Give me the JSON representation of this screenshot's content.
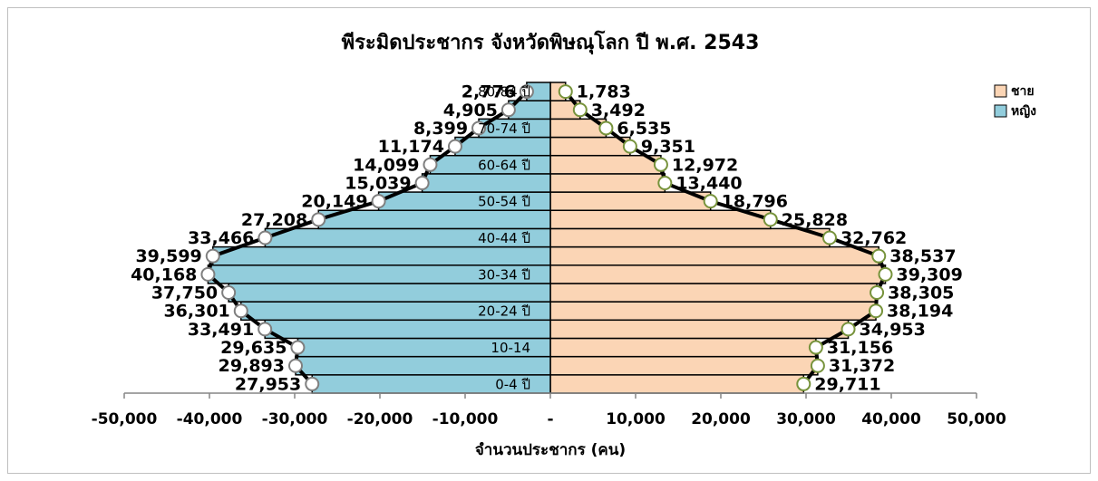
{
  "chart_data": {
    "type": "bar",
    "orientation": "horizontal",
    "title": "พีระมิดประชากร จังหวัดพิษณุโลก ปี พ.ศ. 2543",
    "x_label": "จำนวนประชากร (คน)",
    "categories": [
      "0-4 ปี",
      null,
      "10-14",
      null,
      "20-24 ปี",
      null,
      "30-34 ปี",
      null,
      "40-44 ปี",
      null,
      "50-54 ปี",
      null,
      "60-64 ปี",
      null,
      "70-74 ปี",
      null,
      "80-84 ปี"
    ],
    "series": [
      {
        "name": "ชาย",
        "color": "#fbd5b5",
        "marker_stroke": "#77933c",
        "values": [
          29711,
          31372,
          31156,
          34953,
          38194,
          38305,
          39309,
          38537,
          32762,
          25828,
          18796,
          13440,
          12972,
          9351,
          6535,
          3492,
          1783
        ],
        "value_labels": [
          "29,711",
          "31,372",
          "31,156",
          "34,953",
          "38,194",
          "38,305",
          "39,309",
          "38,537",
          "32,762",
          "25,828",
          "18,796",
          "13,440",
          "12,972",
          "9,351",
          "6,535",
          "3,492",
          "1,783"
        ]
      },
      {
        "name": "หญิง",
        "color": "#92cddc",
        "marker_stroke": "#7f7f7f",
        "values": [
          -27953,
          -29893,
          -29635,
          -33491,
          -36301,
          -37750,
          -40168,
          -39599,
          -33466,
          -27208,
          -20149,
          -15039,
          -14099,
          -11174,
          -8399,
          -4905,
          -2776
        ],
        "value_labels": [
          "27,953",
          "29,893",
          "29,635",
          "33,491",
          "36,301",
          "37,750",
          "40,168",
          "39,599",
          "33,466",
          "27,208",
          "20,149",
          "15,039",
          "14,099",
          "11,174",
          "8,399",
          "4,905",
          "2,776"
        ]
      }
    ],
    "xlim": [
      -50000,
      50000
    ],
    "xticks": [
      {
        "value": -50000,
        "label": "-50,000"
      },
      {
        "value": -40000,
        "label": "-40,000"
      },
      {
        "value": -30000,
        "label": "-30,000"
      },
      {
        "value": -20000,
        "label": "-20,000"
      },
      {
        "value": -10000,
        "label": "-10,000"
      },
      {
        "value": 0,
        "label": "-"
      },
      {
        "value": 10000,
        "label": "10,000"
      },
      {
        "value": 20000,
        "label": "20,000"
      },
      {
        "value": 30000,
        "label": "30,000"
      },
      {
        "value": 40000,
        "label": "40,000"
      },
      {
        "value": 50000,
        "label": "50,000"
      }
    ],
    "legend": "top-right",
    "grid": false
  }
}
